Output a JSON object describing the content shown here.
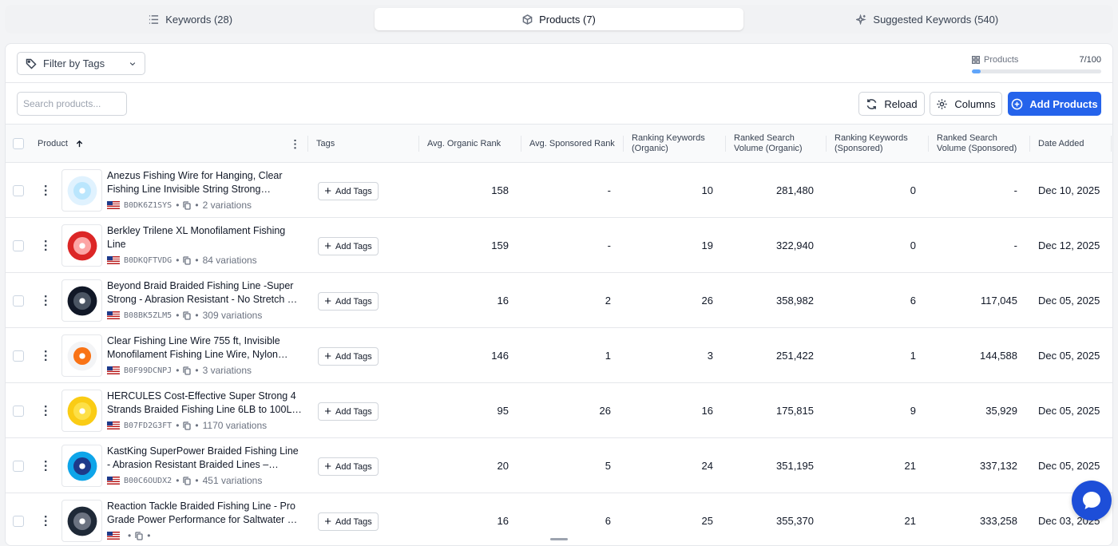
{
  "tabs": [
    {
      "label": "Keywords (28)",
      "icon": "list-icon"
    },
    {
      "label": "Products (7)",
      "icon": "box-icon"
    },
    {
      "label": "Suggested Keywords (540)",
      "icon": "sparkle-icon"
    }
  ],
  "filter": {
    "label": "Filter by Tags"
  },
  "quota": {
    "label": "Products",
    "count": "7/100",
    "fraction": 0.07
  },
  "search": {
    "placeholder": "Search products..."
  },
  "buttons": {
    "reload": "Reload",
    "columns": "Columns",
    "add": "Add Products"
  },
  "columns": {
    "product": "Product",
    "tags": "Tags",
    "avg_organic": "Avg. Organic Rank",
    "avg_sponsored": "Avg. Sponsored Rank",
    "rk_organic": "Ranking Keywords (Organic)",
    "rsv_organic": "Ranked Search Volume (Organic)",
    "rk_sponsored": "Ranking Keywords (Sponsored)",
    "rsv_sponsored": "Ranked Search Volume (Sponsored)",
    "date": "Date Added"
  },
  "add_tags_label": "Add Tags",
  "rows": [
    {
      "title": "Anezus Fishing Wire for Hanging, Clear Fishing Line Invisible String Strong…",
      "asin": "B0DK6Z1SYS",
      "variations": "2 variations",
      "avg_organic": "158",
      "avg_sponsored": "-",
      "rk_organic": "10",
      "rsv_organic": "281,480",
      "rk_sponsored": "0",
      "rsv_sponsored": "-",
      "date": "Dec 10, 2025"
    },
    {
      "title": "Berkley Trilene XL Monofilament Fishing Line",
      "asin": "B0DKQFTVDG",
      "variations": "84 variations",
      "avg_organic": "159",
      "avg_sponsored": "-",
      "rk_organic": "19",
      "rsv_organic": "322,940",
      "rk_sponsored": "0",
      "rsv_sponsored": "-",
      "date": "Dec 12, 2025"
    },
    {
      "title": "Beyond Braid Braided Fishing Line -Super Strong - Abrasion Resistant - No Stretch …",
      "asin": "B08BK5ZLM5",
      "variations": "309 variations",
      "avg_organic": "16",
      "avg_sponsored": "2",
      "rk_organic": "26",
      "rsv_organic": "358,982",
      "rk_sponsored": "6",
      "rsv_sponsored": "117,045",
      "date": "Dec 05, 2025"
    },
    {
      "title": "Clear Fishing Line Wire 755 ft, Invisible Monofilament Fishing Line Wire, Nylon…",
      "asin": "B0F99DCNPJ",
      "variations": "3 variations",
      "avg_organic": "146",
      "avg_sponsored": "1",
      "rk_organic": "3",
      "rsv_organic": "251,422",
      "rk_sponsored": "1",
      "rsv_sponsored": "144,588",
      "date": "Dec 05, 2025"
    },
    {
      "title": "HERCULES Cost-Effective Super Strong 4 Strands Braided Fishing Line 6LB to 100L…",
      "asin": "B07FD2G3FT",
      "variations": "1170 variations",
      "avg_organic": "95",
      "avg_sponsored": "26",
      "rk_organic": "16",
      "rsv_organic": "175,815",
      "rk_sponsored": "9",
      "rsv_sponsored": "35,929",
      "date": "Dec 05, 2025"
    },
    {
      "title": "KastKing SuperPower Braided Fishing Line - Abrasion Resistant Braided Lines –…",
      "asin": "B00C6OUDX2",
      "variations": "451 variations",
      "avg_organic": "20",
      "avg_sponsored": "5",
      "rk_organic": "24",
      "rsv_organic": "351,195",
      "rk_sponsored": "21",
      "rsv_sponsored": "337,132",
      "date": "Dec 05, 2025"
    },
    {
      "title": "Reaction Tackle Braided Fishing Line - Pro Grade Power Performance for Saltwater …",
      "asin": "",
      "variations": "",
      "avg_organic": "16",
      "avg_sponsored": "6",
      "rk_organic": "25",
      "rsv_organic": "355,370",
      "rk_sponsored": "21",
      "rsv_sponsored": "333,258",
      "date": "Dec 03, 2025"
    }
  ],
  "colors": {
    "accent": "#2563eb",
    "quota_fill": "#60a5fa",
    "chat": "#1d4ed8"
  }
}
